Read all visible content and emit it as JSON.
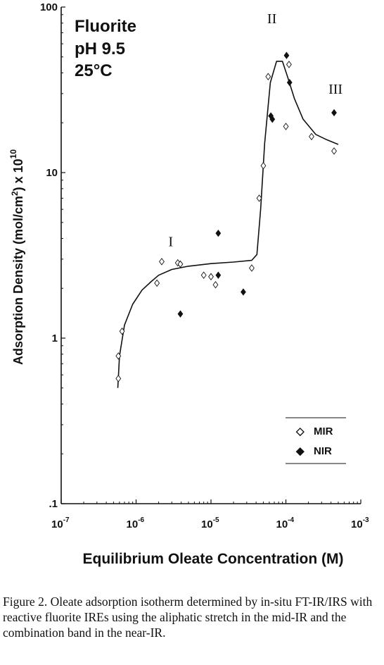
{
  "chart_data": {
    "type": "scatter",
    "title": "",
    "annotation_lines": [
      "Fluorite",
      "pH  9.5",
      "25°C"
    ],
    "region_labels": [
      {
        "text": "I",
        "x": 2.9e-06,
        "y": 3.6
      },
      {
        "text": "II",
        "x": 6.5e-05,
        "y": 80
      },
      {
        "text": "III",
        "x": 0.00046,
        "y": 30
      }
    ],
    "xlabel": "Equilibrium  Oleate  Concentration  (M)",
    "ylabel_parts": [
      "Adsorption Density (mol/cm",
      "2",
      ") x 10",
      "10"
    ],
    "x_scale": "log",
    "y_scale": "log",
    "xlim": [
      1e-07,
      0.001
    ],
    "ylim": [
      0.1,
      100
    ],
    "x_ticks": [
      {
        "base": "10",
        "exp": "-7",
        "value": 1e-07
      },
      {
        "base": "10",
        "exp": "-6",
        "value": 1e-06
      },
      {
        "base": "10",
        "exp": "-5",
        "value": 1e-05
      },
      {
        "base": "10",
        "exp": "-4",
        "value": 0.0001
      },
      {
        "base": "10",
        "exp": "-3",
        "value": 0.001
      }
    ],
    "y_ticks": [
      {
        "label": "100",
        "value": 100
      },
      {
        "label": "10",
        "value": 10
      },
      {
        "label": "1",
        "value": 1
      },
      {
        "label": ".1",
        "value": 0.1
      }
    ],
    "grid": false,
    "legend": {
      "position": "bottom-right",
      "entries": [
        "MIR",
        "NIR"
      ]
    },
    "series": [
      {
        "name": "MIR",
        "marker": "open-diamond",
        "points": [
          {
            "x": 5.8e-07,
            "y": 0.57
          },
          {
            "x": 5.8e-07,
            "y": 0.78
          },
          {
            "x": 6.5e-07,
            "y": 1.1
          },
          {
            "x": 1.9e-06,
            "y": 2.15
          },
          {
            "x": 2.2e-06,
            "y": 2.9
          },
          {
            "x": 3.6e-06,
            "y": 2.85
          },
          {
            "x": 3.9e-06,
            "y": 2.8
          },
          {
            "x": 8e-06,
            "y": 2.4
          },
          {
            "x": 1e-05,
            "y": 2.35
          },
          {
            "x": 1.15e-05,
            "y": 2.1
          },
          {
            "x": 3.5e-05,
            "y": 2.65
          },
          {
            "x": 4.4e-05,
            "y": 7.0
          },
          {
            "x": 5e-05,
            "y": 11.0
          },
          {
            "x": 5.8e-05,
            "y": 38
          },
          {
            "x": 0.0001,
            "y": 19
          },
          {
            "x": 0.00011,
            "y": 45
          },
          {
            "x": 0.00022,
            "y": 16.5
          },
          {
            "x": 0.00044,
            "y": 13.5
          }
        ]
      },
      {
        "name": "NIR",
        "marker": "filled-diamond",
        "points": [
          {
            "x": 3.9e-06,
            "y": 1.4
          },
          {
            "x": 1.25e-05,
            "y": 4.3
          },
          {
            "x": 1.25e-05,
            "y": 2.4
          },
          {
            "x": 2.7e-05,
            "y": 1.9
          },
          {
            "x": 6.3e-05,
            "y": 22
          },
          {
            "x": 6.6e-05,
            "y": 21
          },
          {
            "x": 0.000102,
            "y": 51
          },
          {
            "x": 0.000112,
            "y": 35
          },
          {
            "x": 0.00044,
            "y": 23
          }
        ]
      }
    ],
    "fit_curve": [
      {
        "x": 5.7e-07,
        "y": 0.5
      },
      {
        "x": 6e-07,
        "y": 0.78
      },
      {
        "x": 7e-07,
        "y": 1.2
      },
      {
        "x": 9e-07,
        "y": 1.6
      },
      {
        "x": 1.2e-06,
        "y": 1.95
      },
      {
        "x": 1.6e-06,
        "y": 2.2
      },
      {
        "x": 2e-06,
        "y": 2.4
      },
      {
        "x": 3e-06,
        "y": 2.6
      },
      {
        "x": 5e-06,
        "y": 2.72
      },
      {
        "x": 1e-05,
        "y": 2.82
      },
      {
        "x": 2e-05,
        "y": 2.88
      },
      {
        "x": 3.5e-05,
        "y": 2.95
      },
      {
        "x": 4.1e-05,
        "y": 3.2
      },
      {
        "x": 4.6e-05,
        "y": 6.0
      },
      {
        "x": 5.2e-05,
        "y": 15
      },
      {
        "x": 6.2e-05,
        "y": 35
      },
      {
        "x": 7.5e-05,
        "y": 47
      },
      {
        "x": 9e-05,
        "y": 47
      },
      {
        "x": 0.000105,
        "y": 38
      },
      {
        "x": 0.00013,
        "y": 28
      },
      {
        "x": 0.00017,
        "y": 21
      },
      {
        "x": 0.00025,
        "y": 17
      },
      {
        "x": 0.00035,
        "y": 15.8
      },
      {
        "x": 0.0005,
        "y": 14.8
      }
    ]
  },
  "caption": "Figure 2.  Oleate adsorption isotherm determined by in-situ FT-IR/IRS with reactive fluorite IREs using the aliphatic stretch in the mid-IR and the combination band in the near-IR."
}
